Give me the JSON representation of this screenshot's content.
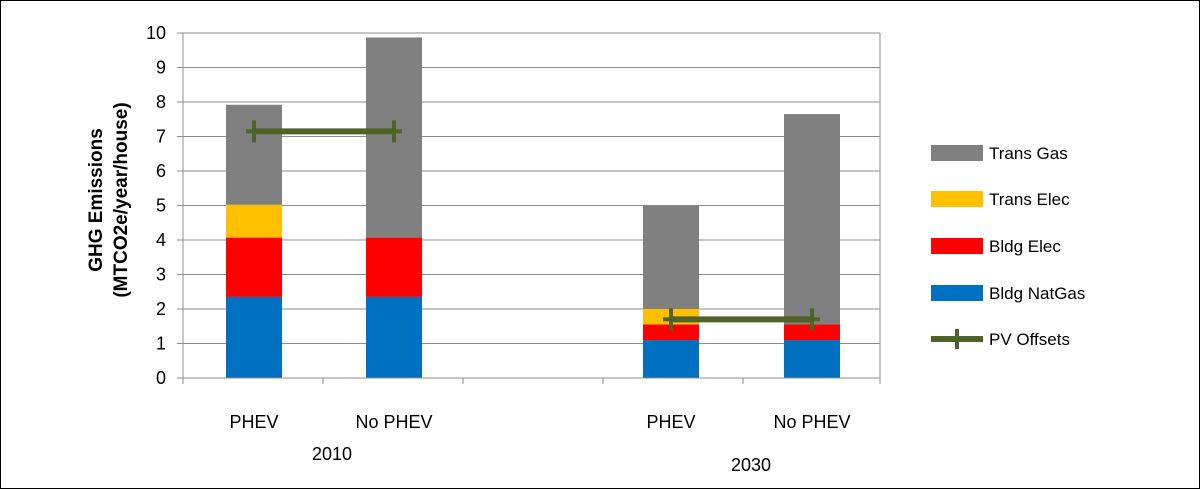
{
  "chart_data": {
    "type": "bar",
    "stacked": true,
    "groups": [
      {
        "label": "2010",
        "categories": [
          "PHEV",
          "No PHEV"
        ]
      },
      {
        "label": "2030",
        "categories": [
          "PHEV",
          "No PHEV"
        ]
      }
    ],
    "x": [
      "PHEV",
      "No PHEV",
      "PHEV",
      "No PHEV"
    ],
    "series": [
      {
        "name": "Bldg NatGas",
        "color": "#0070c0",
        "values": [
          2.35,
          2.35,
          1.1,
          1.1
        ]
      },
      {
        "name": "Bldg Elec",
        "color": "#ff0000",
        "values": [
          1.72,
          1.72,
          0.45,
          0.45
        ]
      },
      {
        "name": "Trans Elec",
        "color": "#ffc000",
        "values": [
          0.95,
          0,
          0.45,
          0
        ]
      },
      {
        "name": "Trans Gas",
        "color": "#808080",
        "values": [
          2.9,
          5.8,
          3.0,
          6.1
        ]
      }
    ],
    "line_series": [
      {
        "name": "PV Offsets",
        "color": "#4f6228",
        "segments": [
          {
            "group": "2010",
            "value": 7.15
          },
          {
            "group": "2030",
            "value": 1.7
          }
        ]
      }
    ],
    "ylabel_line1": "GHG Emissions",
    "ylabel_line2": "(MTCO2e/year/house)",
    "ylim": [
      0,
      10
    ],
    "yticks": [
      "0",
      "1",
      "2",
      "3",
      "4",
      "5",
      "6",
      "7",
      "8",
      "9",
      "10"
    ],
    "grid": true,
    "legend_position": "right",
    "legend_order": [
      "Trans Gas",
      "Trans Elec",
      "Bldg Elec",
      "Bldg NatGas",
      "PV Offsets"
    ]
  }
}
